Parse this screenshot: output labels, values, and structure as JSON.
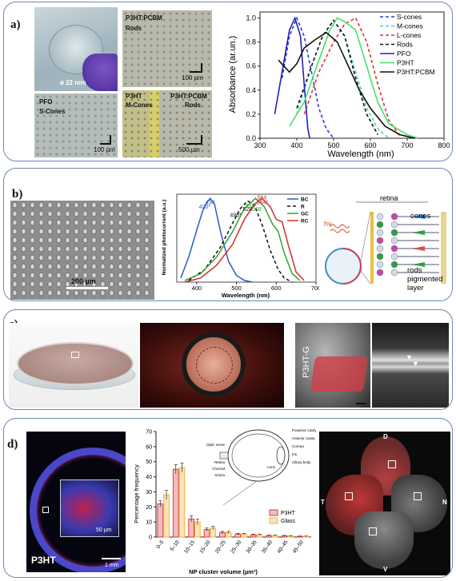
{
  "panels": {
    "a": {
      "label": "a)",
      "photo_labels": {
        "rods_title": "P3HT:PCBM",
        "rods_sub": "Rods",
        "diameter": "ø 22 mm",
        "pfo_title": "PFO",
        "pfo_sub": "S-Cones",
        "mcones_title": "P3HT",
        "mcones_sub": "M-Cones",
        "mixed_title": "P3HT:PCBM",
        "mixed_sub": "Rods",
        "scale_100a": "100 µm",
        "scale_100b": "100 µm",
        "scale_500": "500 µm"
      }
    },
    "b": {
      "label": "b)",
      "scale_bar": "200 µm",
      "retina_labels": {
        "hv": "hν",
        "retina": "retina",
        "cones": "cones",
        "rods": "rods",
        "pigmented": "pigmented",
        "layer": "layer"
      }
    },
    "c": {
      "label": "c)",
      "sample_label": "P3HT-G"
    },
    "d": {
      "label": "d)",
      "p3ht_label": "P3HT",
      "scale_50": "50 µm",
      "scale_1mm": "1 mm",
      "eye_labels": [
        "Posterior cavity",
        "Anterior cavity",
        "Cornea",
        "Iris",
        "Ciliary body",
        "Optic nerve",
        "Lens",
        "Retina",
        "Choroid",
        "Sclera"
      ],
      "orientation": {
        "top": "D",
        "bottom": "V",
        "left": "T",
        "right": "N"
      }
    }
  },
  "chart_data": [
    {
      "type": "line",
      "id": "absorbance",
      "xlabel": "Wavelength (nm)",
      "ylabel": "Absorbance (ar.un.)",
      "xlim": [
        300,
        800
      ],
      "ylim": [
        0.0,
        1.05
      ],
      "xticks": [
        300,
        400,
        500,
        600,
        700,
        800
      ],
      "yticks": [
        0.0,
        0.2,
        0.4,
        0.6,
        0.8,
        1.0
      ],
      "legend": "top-right",
      "series": [
        {
          "name": "S-cones",
          "color": "#2b3bd6",
          "dash": "dash",
          "x": [
            360,
            380,
            400,
            420,
            440,
            460,
            480,
            500
          ],
          "y": [
            0.5,
            0.85,
            1.0,
            0.85,
            0.55,
            0.25,
            0.08,
            0.0
          ]
        },
        {
          "name": "M-cones",
          "color": "#45d3b5",
          "dash": "dash",
          "x": [
            400,
            440,
            470,
            500,
            530,
            560,
            590,
            620,
            650
          ],
          "y": [
            0.2,
            0.6,
            0.85,
            0.98,
            0.85,
            0.55,
            0.25,
            0.08,
            0.0
          ]
        },
        {
          "name": "L-cones",
          "color": "#e03030",
          "dash": "dash",
          "x": [
            420,
            460,
            500,
            530,
            560,
            590,
            620,
            650,
            680
          ],
          "y": [
            0.2,
            0.55,
            0.8,
            0.95,
            1.0,
            0.8,
            0.45,
            0.15,
            0.02
          ]
        },
        {
          "name": "Rods",
          "color": "#111111",
          "dash": "dash",
          "x": [
            400,
            440,
            470,
            500,
            530,
            560,
            590,
            620
          ],
          "y": [
            0.25,
            0.6,
            0.85,
            0.98,
            0.85,
            0.5,
            0.2,
            0.03
          ]
        },
        {
          "name": "PFO",
          "color": "#2020c0",
          "dash": "solid",
          "x": [
            340,
            360,
            380,
            395,
            410,
            420,
            430,
            435
          ],
          "y": [
            0.2,
            0.55,
            0.9,
            1.0,
            0.85,
            0.45,
            0.08,
            0.0
          ]
        },
        {
          "name": "P3HT",
          "color": "#45e06a",
          "dash": "solid",
          "x": [
            380,
            420,
            460,
            490,
            510,
            530,
            560,
            590,
            620,
            650,
            700,
            730
          ],
          "y": [
            0.1,
            0.3,
            0.65,
            0.9,
            1.0,
            0.97,
            0.9,
            0.6,
            0.3,
            0.12,
            0.03,
            0.0
          ]
        },
        {
          "name": "P3HT:PCBM",
          "color": "#111111",
          "dash": "solid",
          "x": [
            350,
            380,
            400,
            420,
            450,
            480,
            510,
            540,
            570,
            600,
            640,
            680,
            720
          ],
          "y": [
            0.65,
            0.55,
            0.62,
            0.75,
            0.82,
            0.88,
            0.8,
            0.6,
            0.4,
            0.25,
            0.1,
            0.03,
            0.0
          ]
        }
      ]
    },
    {
      "type": "line",
      "id": "photocurrent",
      "xlabel": "Wavelength (nm)",
      "ylabel": "Normalized photocurrent (a.u.)",
      "xlim": [
        350,
        700
      ],
      "xticks": [
        400,
        500,
        600,
        700
      ],
      "ylim": [
        0,
        1.05
      ],
      "legend": "top-right",
      "peaks": [
        {
          "text": "420*",
          "x": 420,
          "y": 0.86,
          "color": "#2a5cc7"
        },
        {
          "text": "434",
          "x": 434,
          "y": 0.91,
          "color": "#2a5cc7"
        },
        {
          "text": "498*",
          "x": 498,
          "y": 0.76,
          "color": "#111111"
        },
        {
          "text": "528",
          "x": 528,
          "y": 0.83,
          "color": "#111111"
        },
        {
          "text": "534*",
          "x": 537,
          "y": 0.87,
          "color": "#36a136"
        },
        {
          "text": "548",
          "x": 551,
          "y": 0.83,
          "color": "#36a136"
        },
        {
          "text": "564",
          "x": 564,
          "y": 0.97,
          "color": "#d52b2b"
        },
        {
          "text": "564*",
          "x": 565,
          "y": 0.91,
          "color": "#d52b2b"
        }
      ],
      "series": [
        {
          "name": "BC",
          "color": "#2a5cc7",
          "dash": "solid",
          "x": [
            360,
            380,
            400,
            415,
            425,
            434,
            445,
            460,
            480,
            500,
            520,
            540
          ],
          "y": [
            0.05,
            0.3,
            0.62,
            0.85,
            0.95,
            1.0,
            0.93,
            0.6,
            0.25,
            0.08,
            0.02,
            0.0
          ]
        },
        {
          "name": "R",
          "color": "#111111",
          "dash": "dash",
          "x": [
            380,
            420,
            460,
            490,
            510,
            528,
            545,
            565,
            585,
            605,
            620,
            640
          ],
          "y": [
            0.02,
            0.15,
            0.42,
            0.7,
            0.88,
            0.97,
            0.92,
            0.68,
            0.38,
            0.15,
            0.05,
            0.0
          ]
        },
        {
          "name": "GC",
          "color": "#36a136",
          "dash": "solid",
          "x": [
            370,
            410,
            450,
            490,
            520,
            548,
            570,
            590,
            605,
            620,
            640,
            660
          ],
          "y": [
            0.02,
            0.1,
            0.3,
            0.6,
            0.88,
            1.0,
            0.9,
            0.7,
            0.6,
            0.35,
            0.1,
            0.02
          ]
        },
        {
          "name": "RC",
          "color": "#d52b2b",
          "dash": "solid",
          "x": [
            370,
            410,
            450,
            490,
            520,
            545,
            564,
            585,
            600,
            615,
            630,
            650,
            670
          ],
          "y": [
            0.0,
            0.05,
            0.2,
            0.45,
            0.75,
            0.93,
            1.0,
            0.9,
            0.75,
            0.72,
            0.45,
            0.12,
            0.02
          ]
        }
      ]
    },
    {
      "type": "bar",
      "id": "np-cluster",
      "xlabel": "NP cluster volume (µm³)",
      "ylabel": "Percentage frequency",
      "ylim": [
        0,
        70
      ],
      "yticks": [
        0,
        10,
        20,
        30,
        40,
        50,
        60,
        70
      ],
      "legend": "bottom-right",
      "categories": [
        "0–5",
        "5–10",
        "10–15",
        "15–20",
        "20–25",
        "25–30",
        "30–35",
        "35–40",
        "40–45",
        "45–50"
      ],
      "series": [
        {
          "name": "P3HT",
          "color": "#d9403f",
          "values": [
            22,
            45,
            12,
            5,
            3,
            2,
            1.5,
            1,
            0.8,
            0.5
          ],
          "errors": [
            2,
            3,
            2,
            1,
            0.8,
            0.5,
            0.4,
            0.3,
            0.3,
            0.2
          ]
        },
        {
          "name": "Glass",
          "color": "#f0b23c",
          "values": [
            28,
            46,
            10,
            6,
            3,
            2,
            1.5,
            1,
            0.7,
            0.5
          ],
          "errors": [
            3,
            3,
            2,
            1.2,
            0.8,
            0.5,
            0.4,
            0.3,
            0.3,
            0.2
          ]
        }
      ]
    }
  ]
}
